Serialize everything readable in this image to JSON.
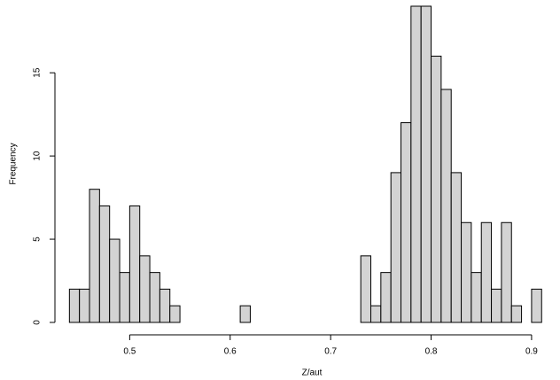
{
  "chart_data": {
    "type": "histogram",
    "x_label": "Z/aut",
    "y_label": "Frequency",
    "bins": [
      0.44,
      0.45,
      0.46,
      0.47,
      0.48,
      0.49,
      0.5,
      0.51,
      0.52,
      0.53,
      0.54,
      0.55,
      0.56,
      0.57,
      0.58,
      0.59,
      0.6,
      0.61,
      0.62,
      0.63,
      0.64,
      0.65,
      0.66,
      0.67,
      0.68,
      0.69,
      0.7,
      0.71,
      0.72,
      0.73,
      0.74,
      0.75,
      0.76,
      0.77,
      0.78,
      0.79,
      0.8,
      0.81,
      0.82,
      0.83,
      0.84,
      0.85,
      0.86,
      0.87,
      0.88,
      0.89,
      0.9,
      0.91
    ],
    "values": [
      2,
      2,
      8,
      7,
      5,
      3,
      7,
      4,
      3,
      2,
      1,
      0,
      0,
      0,
      0,
      0,
      0,
      1,
      0,
      0,
      0,
      0,
      0,
      0,
      0,
      0,
      0,
      0,
      0,
      4,
      1,
      3,
      9,
      12,
      19,
      19,
      16,
      14,
      9,
      6,
      3,
      6,
      2,
      6,
      1,
      0,
      2
    ],
    "color": "#d3d3d3",
    "xlim": [
      0.43,
      0.92
    ],
    "xticks": [
      0.5,
      0.6,
      0.7,
      0.8,
      0.9
    ],
    "ylim": [
      0,
      19
    ],
    "yticks": [
      0,
      5,
      10,
      15
    ]
  }
}
